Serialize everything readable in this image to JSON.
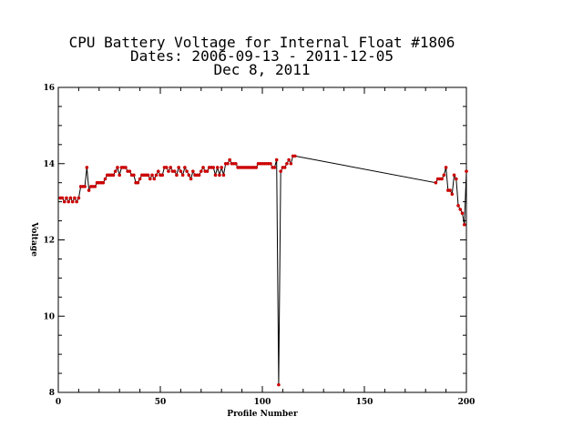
{
  "chart_data": {
    "type": "line",
    "title_lines": [
      "CPU Battery Voltage for Internal Float #1806",
      "Dates:  2006-09-13 -  2011-12-05",
      "Dec  8, 2011"
    ],
    "xlabel": "Profile Number",
    "ylabel": "Voltage",
    "xlim": [
      0,
      200
    ],
    "ylim": [
      8,
      16
    ],
    "xticks": [
      0,
      50,
      100,
      150,
      200
    ],
    "yticks": [
      8,
      10,
      12,
      14,
      16
    ],
    "grid": false,
    "line_color": "#000000",
    "marker_color": "#cc0000",
    "series": [
      {
        "x": [
          1,
          2,
          3,
          4,
          5,
          6,
          7,
          8,
          9,
          10,
          11,
          12,
          13,
          14,
          15,
          16,
          17,
          18,
          19,
          20,
          21,
          22,
          23,
          24,
          25,
          26,
          27,
          28,
          29,
          30,
          31,
          32,
          33,
          34,
          35,
          36,
          37,
          38,
          39,
          40,
          41,
          42,
          43,
          44,
          45,
          46,
          47,
          48,
          49,
          50,
          51,
          52,
          53,
          54,
          55,
          56,
          57,
          58,
          59,
          60,
          61,
          62,
          63,
          64,
          65,
          66,
          67,
          68,
          69,
          70,
          71,
          72,
          73,
          74,
          75,
          76,
          77,
          78,
          79,
          80,
          81,
          82,
          83,
          84,
          85,
          86,
          87,
          88,
          89,
          90,
          91,
          92,
          93,
          94,
          95,
          96,
          97,
          98,
          99,
          100,
          101,
          102,
          103,
          104,
          105,
          106,
          107,
          108,
          109,
          110,
          111,
          112,
          113,
          114,
          115,
          116,
          185,
          186,
          187,
          188,
          189,
          190,
          191,
          192,
          193,
          194,
          195,
          196,
          197,
          198,
          199,
          200
        ],
        "y": [
          13.1,
          13.1,
          13.0,
          13.1,
          13.0,
          13.1,
          13.0,
          13.1,
          13.0,
          13.1,
          13.4,
          13.4,
          13.4,
          13.9,
          13.3,
          13.4,
          13.4,
          13.4,
          13.5,
          13.5,
          13.5,
          13.5,
          13.6,
          13.7,
          13.7,
          13.7,
          13.7,
          13.8,
          13.9,
          13.7,
          13.9,
          13.9,
          13.9,
          13.8,
          13.8,
          13.7,
          13.7,
          13.5,
          13.5,
          13.6,
          13.7,
          13.7,
          13.7,
          13.7,
          13.6,
          13.7,
          13.6,
          13.7,
          13.8,
          13.7,
          13.7,
          13.9,
          13.9,
          13.8,
          13.9,
          13.8,
          13.8,
          13.7,
          13.9,
          13.8,
          13.7,
          13.9,
          13.8,
          13.7,
          13.6,
          13.8,
          13.7,
          13.7,
          13.7,
          13.8,
          13.9,
          13.8,
          13.8,
          13.9,
          13.9,
          13.9,
          13.7,
          13.9,
          13.7,
          13.9,
          13.7,
          14.0,
          14.0,
          14.1,
          14.0,
          14.0,
          14.0,
          13.9,
          13.9,
          13.9,
          13.9,
          13.9,
          13.9,
          13.9,
          13.9,
          13.9,
          13.9,
          14.0,
          14.0,
          14.0,
          14.0,
          14.0,
          14.0,
          14.0,
          13.9,
          13.9,
          14.1,
          8.2,
          13.8,
          13.9,
          13.9,
          14.0,
          14.1,
          14.0,
          14.2,
          14.2,
          13.5,
          13.6,
          13.6,
          13.6,
          13.7,
          13.9,
          13.3,
          13.3,
          13.2,
          13.7,
          13.6,
          12.9,
          12.8,
          12.7,
          12.4,
          13.8
        ]
      }
    ]
  }
}
